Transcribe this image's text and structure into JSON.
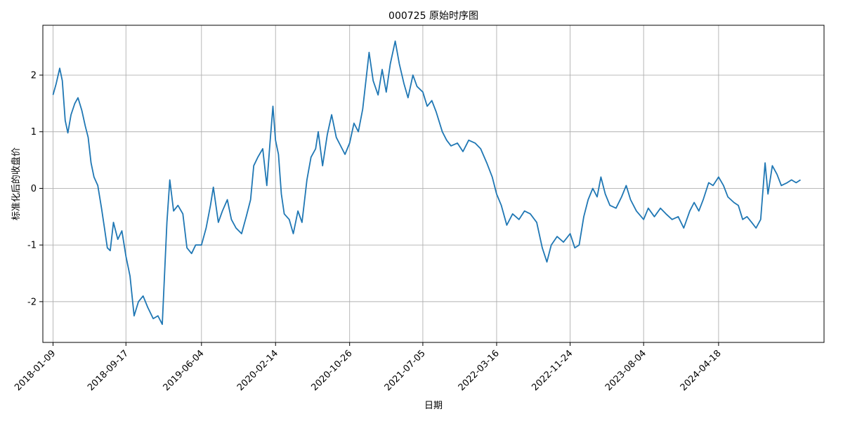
{
  "chart_data": {
    "type": "line",
    "title": "000725 原始时序图",
    "xlabel": "日期",
    "ylabel": "标准化后的收盘价",
    "x_range": [
      "2017-12-05",
      "2025-04-16"
    ],
    "ylim": [
      -2.72,
      2.88
    ],
    "x_ticks": [
      "2018-01-09",
      "2018-09-17",
      "2019-06-04",
      "2020-02-14",
      "2020-10-26",
      "2021-07-05",
      "2022-03-16",
      "2022-11-24",
      "2023-08-04",
      "2024-04-18"
    ],
    "y_ticks": [
      2,
      1,
      0,
      -1,
      -2
    ],
    "grid": true,
    "series": [
      {
        "color": "#1f77b4",
        "points": [
          [
            "2018-01-09",
            1.65
          ],
          [
            "2018-01-20",
            1.85
          ],
          [
            "2018-02-01",
            2.12
          ],
          [
            "2018-02-10",
            1.9
          ],
          [
            "2018-02-20",
            1.2
          ],
          [
            "2018-03-01",
            0.98
          ],
          [
            "2018-03-12",
            1.3
          ],
          [
            "2018-03-25",
            1.5
          ],
          [
            "2018-04-05",
            1.6
          ],
          [
            "2018-04-18",
            1.38
          ],
          [
            "2018-04-30",
            1.1
          ],
          [
            "2018-05-10",
            0.9
          ],
          [
            "2018-05-20",
            0.45
          ],
          [
            "2018-05-30",
            0.2
          ],
          [
            "2018-06-12",
            0.05
          ],
          [
            "2018-06-25",
            -0.35
          ],
          [
            "2018-07-05",
            -0.7
          ],
          [
            "2018-07-15",
            -1.05
          ],
          [
            "2018-07-25",
            -1.1
          ],
          [
            "2018-08-05",
            -0.6
          ],
          [
            "2018-08-20",
            -0.9
          ],
          [
            "2018-09-03",
            -0.75
          ],
          [
            "2018-09-17",
            -1.2
          ],
          [
            "2018-10-01",
            -1.55
          ],
          [
            "2018-10-15",
            -2.25
          ],
          [
            "2018-10-30",
            -2.0
          ],
          [
            "2018-11-15",
            -1.9
          ],
          [
            "2018-12-01",
            -2.1
          ],
          [
            "2018-12-20",
            -2.3
          ],
          [
            "2019-01-05",
            -2.25
          ],
          [
            "2019-01-20",
            -2.4
          ],
          [
            "2019-02-05",
            -0.6
          ],
          [
            "2019-02-15",
            0.15
          ],
          [
            "2019-02-28",
            -0.4
          ],
          [
            "2019-03-15",
            -0.3
          ],
          [
            "2019-04-01",
            -0.45
          ],
          [
            "2019-04-15",
            -1.05
          ],
          [
            "2019-05-01",
            -1.15
          ],
          [
            "2019-05-15",
            -1.0
          ],
          [
            "2019-06-04",
            -1.0
          ],
          [
            "2019-06-20",
            -0.7
          ],
          [
            "2019-07-05",
            -0.3
          ],
          [
            "2019-07-15",
            0.02
          ],
          [
            "2019-08-01",
            -0.6
          ],
          [
            "2019-08-15",
            -0.4
          ],
          [
            "2019-09-01",
            -0.2
          ],
          [
            "2019-09-15",
            -0.55
          ],
          [
            "2019-10-01",
            -0.7
          ],
          [
            "2019-10-20",
            -0.8
          ],
          [
            "2019-11-05",
            -0.5
          ],
          [
            "2019-11-20",
            -0.2
          ],
          [
            "2019-12-01",
            0.4
          ],
          [
            "2019-12-15",
            0.55
          ],
          [
            "2020-01-01",
            0.7
          ],
          [
            "2020-01-15",
            0.05
          ],
          [
            "2020-01-25",
            0.75
          ],
          [
            "2020-02-05",
            1.45
          ],
          [
            "2020-02-14",
            0.85
          ],
          [
            "2020-02-24",
            0.6
          ],
          [
            "2020-03-05",
            -0.1
          ],
          [
            "2020-03-15",
            -0.45
          ],
          [
            "2020-04-01",
            -0.55
          ],
          [
            "2020-04-15",
            -0.8
          ],
          [
            "2020-05-01",
            -0.4
          ],
          [
            "2020-05-15",
            -0.6
          ],
          [
            "2020-06-01",
            0.15
          ],
          [
            "2020-06-15",
            0.55
          ],
          [
            "2020-07-01",
            0.7
          ],
          [
            "2020-07-10",
            1.0
          ],
          [
            "2020-07-25",
            0.4
          ],
          [
            "2020-08-10",
            0.95
          ],
          [
            "2020-08-25",
            1.3
          ],
          [
            "2020-09-10",
            0.9
          ],
          [
            "2020-09-25",
            0.75
          ],
          [
            "2020-10-10",
            0.6
          ],
          [
            "2020-10-26",
            0.8
          ],
          [
            "2020-11-10",
            1.15
          ],
          [
            "2020-11-25",
            1.0
          ],
          [
            "2020-12-10",
            1.4
          ],
          [
            "2021-01-01",
            2.4
          ],
          [
            "2021-01-15",
            1.9
          ],
          [
            "2021-02-01",
            1.65
          ],
          [
            "2021-02-15",
            2.1
          ],
          [
            "2021-03-01",
            1.7
          ],
          [
            "2021-03-15",
            2.2
          ],
          [
            "2021-04-01",
            2.6
          ],
          [
            "2021-04-15",
            2.2
          ],
          [
            "2021-05-01",
            1.85
          ],
          [
            "2021-05-15",
            1.6
          ],
          [
            "2021-06-01",
            2.0
          ],
          [
            "2021-06-15",
            1.8
          ],
          [
            "2021-07-05",
            1.7
          ],
          [
            "2021-07-20",
            1.45
          ],
          [
            "2021-08-05",
            1.55
          ],
          [
            "2021-08-20",
            1.35
          ],
          [
            "2021-09-10",
            1.0
          ],
          [
            "2021-09-25",
            0.85
          ],
          [
            "2021-10-10",
            0.75
          ],
          [
            "2021-11-01",
            0.8
          ],
          [
            "2021-11-20",
            0.65
          ],
          [
            "2021-12-10",
            0.85
          ],
          [
            "2022-01-01",
            0.8
          ],
          [
            "2022-01-20",
            0.7
          ],
          [
            "2022-02-10",
            0.45
          ],
          [
            "2022-03-01",
            0.2
          ],
          [
            "2022-03-16",
            -0.1
          ],
          [
            "2022-04-01",
            -0.3
          ],
          [
            "2022-04-20",
            -0.65
          ],
          [
            "2022-05-10",
            -0.45
          ],
          [
            "2022-06-01",
            -0.55
          ],
          [
            "2022-06-20",
            -0.4
          ],
          [
            "2022-07-10",
            -0.45
          ],
          [
            "2022-08-01",
            -0.6
          ],
          [
            "2022-08-20",
            -1.05
          ],
          [
            "2022-09-05",
            -1.3
          ],
          [
            "2022-09-20",
            -1.0
          ],
          [
            "2022-10-10",
            -0.85
          ],
          [
            "2022-11-01",
            -0.95
          ],
          [
            "2022-11-24",
            -0.8
          ],
          [
            "2022-12-10",
            -1.05
          ],
          [
            "2022-12-25",
            -1.0
          ],
          [
            "2023-01-10",
            -0.5
          ],
          [
            "2023-01-25",
            -0.2
          ],
          [
            "2023-02-10",
            0.0
          ],
          [
            "2023-02-25",
            -0.15
          ],
          [
            "2023-03-10",
            0.2
          ],
          [
            "2023-03-25",
            -0.1
          ],
          [
            "2023-04-10",
            -0.3
          ],
          [
            "2023-05-01",
            -0.35
          ],
          [
            "2023-05-20",
            -0.15
          ],
          [
            "2023-06-05",
            0.05
          ],
          [
            "2023-06-20",
            -0.2
          ],
          [
            "2023-07-10",
            -0.4
          ],
          [
            "2023-08-04",
            -0.55
          ],
          [
            "2023-08-20",
            -0.35
          ],
          [
            "2023-09-10",
            -0.5
          ],
          [
            "2023-10-01",
            -0.35
          ],
          [
            "2023-10-20",
            -0.45
          ],
          [
            "2023-11-10",
            -0.55
          ],
          [
            "2023-12-01",
            -0.5
          ],
          [
            "2023-12-20",
            -0.7
          ],
          [
            "2024-01-10",
            -0.4
          ],
          [
            "2024-01-25",
            -0.25
          ],
          [
            "2024-02-10",
            -0.4
          ],
          [
            "2024-02-25",
            -0.2
          ],
          [
            "2024-03-15",
            0.1
          ],
          [
            "2024-03-30",
            0.05
          ],
          [
            "2024-04-18",
            0.2
          ],
          [
            "2024-05-05",
            0.05
          ],
          [
            "2024-05-20",
            -0.15
          ],
          [
            "2024-06-10",
            -0.25
          ],
          [
            "2024-06-25",
            -0.3
          ],
          [
            "2024-07-10",
            -0.55
          ],
          [
            "2024-07-25",
            -0.5
          ],
          [
            "2024-08-10",
            -0.6
          ],
          [
            "2024-08-25",
            -0.7
          ],
          [
            "2024-09-10",
            -0.55
          ],
          [
            "2024-09-25",
            0.45
          ],
          [
            "2024-10-05",
            -0.1
          ],
          [
            "2024-10-20",
            0.4
          ],
          [
            "2024-11-05",
            0.25
          ],
          [
            "2024-11-20",
            0.05
          ],
          [
            "2024-12-10",
            0.1
          ],
          [
            "2024-12-25",
            0.15
          ],
          [
            "2025-01-10",
            0.1
          ],
          [
            "2025-01-25",
            0.15
          ]
        ]
      }
    ]
  }
}
